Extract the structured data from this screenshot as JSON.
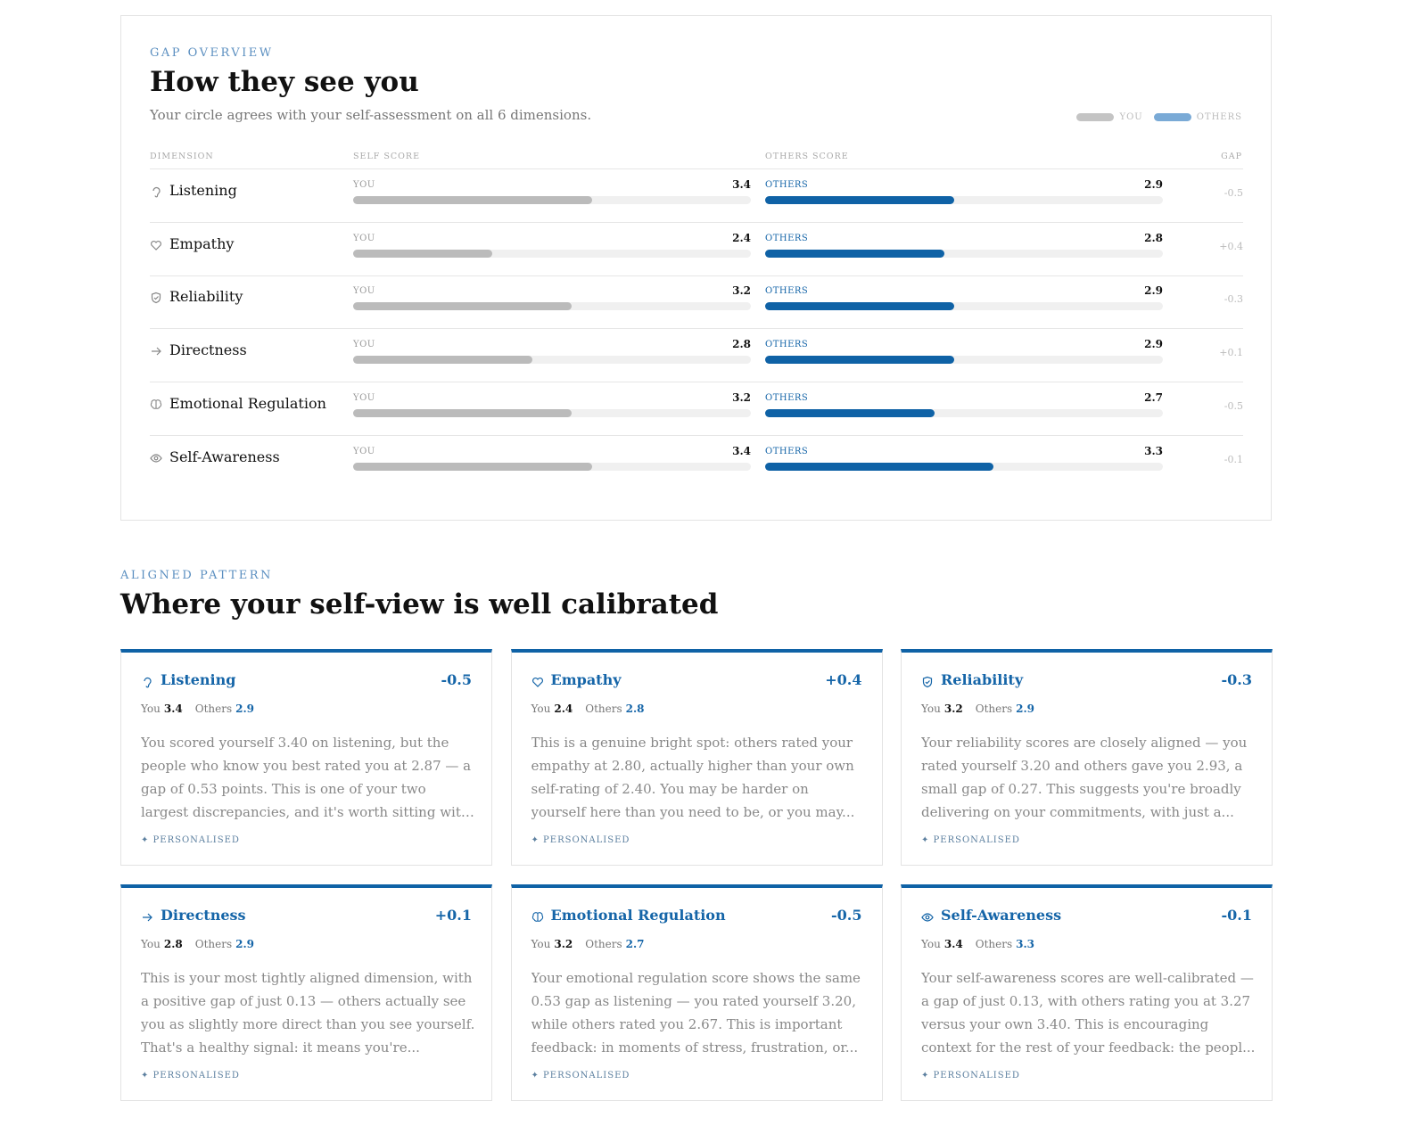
{
  "overview": {
    "eyebrow": "GAP OVERVIEW",
    "title": "How they see you",
    "subtitle": "Your circle agrees with your self-assessment on all 6 dimensions.",
    "legend": {
      "you": "YOU",
      "others": "OTHERS"
    },
    "columns": [
      "DIMENSION",
      "SELF SCORE",
      "OTHERS SCORE",
      "GAP"
    ],
    "score_range": [
      1,
      5
    ],
    "rows": [
      {
        "name": "Listening",
        "self": 3.4,
        "others": 2.9,
        "gap": "-0.5"
      },
      {
        "name": "Empathy",
        "self": 2.4,
        "others": 2.8,
        "gap": "+0.4"
      },
      {
        "name": "Reliability",
        "self": 3.2,
        "others": 2.9,
        "gap": "-0.3"
      },
      {
        "name": "Directness",
        "self": 2.8,
        "others": 2.9,
        "gap": "+0.1"
      },
      {
        "name": "Emotional Regulation",
        "self": 3.2,
        "others": 2.7,
        "gap": "-0.5"
      },
      {
        "name": "Self-Awareness",
        "self": 3.4,
        "others": 3.3,
        "gap": "-0.1"
      }
    ]
  },
  "aligned": {
    "eyebrow": "ALIGNED PATTERN",
    "title": "Where your self-view is well calibrated",
    "you_label": "You",
    "others_label": "Others",
    "tag": "✦ PERSONALISED",
    "cards": [
      {
        "text": "You scored yourself 3.40 on listening, but the people who know you best rated you at 2.87 — a gap of 0.53 points. This is one of your two largest discrepancies, and it's worth sitting with: you..."
      },
      {
        "text": "This is a genuine bright spot: others rated your empathy at 2.80, actually higher than your own self-rating of 2.40. You may be harder on yourself here than you need to be, or you may..."
      },
      {
        "text": "Your reliability scores are closely aligned — you rated yourself 3.20 and others gave you 2.93, a small gap of 0.27. This suggests you're broadly delivering on your commitments, with just a..."
      },
      {
        "text": "This is your most tightly aligned dimension, with a positive gap of just 0.13 — others actually see you as slightly more direct than you see yourself. That's a healthy signal: it means you're..."
      },
      {
        "text": "Your emotional regulation score shows the same 0.53 gap as listening — you rated yourself 3.20, while others rated you 2.67. This is important feedback: in moments of stress, frustration, or..."
      },
      {
        "text": "Your self-awareness scores are well-calibrated — a gap of just 0.13, with others rating you at 3.27 versus your own 3.40. This is encouraging context for the rest of your feedback: the peopl..."
      }
    ]
  }
}
